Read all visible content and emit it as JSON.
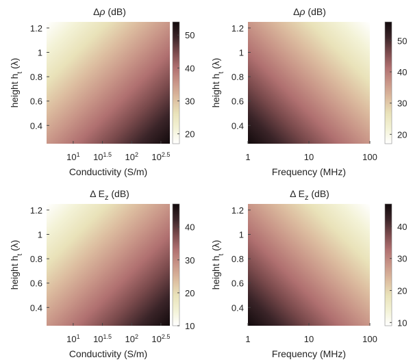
{
  "chart_data": [
    {
      "type": "heatmap",
      "title_prefix": "Δ",
      "title_symbol": "ρ",
      "title_unit": " (dB)",
      "xlabel": "Conductivity (S/m)",
      "ylabel_main": "height h",
      "ylabel_sub": "t",
      "ylabel_unit": " (λ)",
      "x_scale": "log",
      "xlim": [
        3.5,
        450
      ],
      "ylim": [
        0.25,
        1.25
      ],
      "x_ticks": [
        {
          "base": "10",
          "exp": "1"
        },
        {
          "base": "10",
          "exp": "1.5"
        },
        {
          "base": "10",
          "exp": "2"
        },
        {
          "base": "10",
          "exp": "2.5"
        }
      ],
      "x_tick_values": [
        10,
        31.6,
        100,
        316
      ],
      "y_ticks": [
        "0.4",
        "0.6",
        "0.8",
        "1",
        "1.2"
      ],
      "y_tick_values": [
        0.4,
        0.6,
        0.8,
        1.0,
        1.2
      ],
      "colorbar": {
        "min": 17,
        "max": 54,
        "ticks": [
          "20",
          "30",
          "40",
          "50"
        ],
        "tick_values": [
          20,
          30,
          40,
          50
        ]
      },
      "value_range": [
        17,
        54
      ],
      "gradient_direction": "increases toward high x, low y"
    },
    {
      "type": "heatmap",
      "title_prefix": "Δ",
      "title_symbol": "ρ",
      "title_unit": " (dB)",
      "xlabel": "Frequency (MHz)",
      "ylabel_main": "height h",
      "ylabel_sub": "t",
      "ylabel_unit": " (λ)",
      "x_scale": "log",
      "xlim": [
        1,
        100
      ],
      "ylim": [
        0.25,
        1.25
      ],
      "x_ticks": [
        {
          "base": "1",
          "exp": ""
        },
        {
          "base": "10",
          "exp": ""
        },
        {
          "base": "100",
          "exp": ""
        }
      ],
      "x_tick_values": [
        1,
        10,
        100
      ],
      "y_ticks": [
        "0.4",
        "0.6",
        "0.8",
        "1",
        "1.2"
      ],
      "y_tick_values": [
        0.4,
        0.6,
        0.8,
        1.0,
        1.2
      ],
      "colorbar": {
        "min": 17,
        "max": 56,
        "ticks": [
          "20",
          "30",
          "40",
          "50"
        ],
        "tick_values": [
          20,
          30,
          40,
          50
        ]
      },
      "value_range": [
        17,
        56
      ],
      "gradient_direction": "increases toward low x, low y"
    },
    {
      "type": "heatmap",
      "title_prefix": "Δ E",
      "title_symbol": "z",
      "title_unit": " (dB)",
      "xlabel": "Conductivity (S/m)",
      "ylabel_main": "height h",
      "ylabel_sub": "t",
      "ylabel_unit": " (λ)",
      "x_scale": "log",
      "xlim": [
        3.5,
        450
      ],
      "ylim": [
        0.25,
        1.25
      ],
      "x_ticks": [
        {
          "base": "10",
          "exp": "1"
        },
        {
          "base": "10",
          "exp": "1.5"
        },
        {
          "base": "10",
          "exp": "2"
        },
        {
          "base": "10",
          "exp": "2.5"
        }
      ],
      "x_tick_values": [
        10,
        31.6,
        100,
        316
      ],
      "y_ticks": [
        "0.4",
        "0.6",
        "0.8",
        "1",
        "1.2"
      ],
      "y_tick_values": [
        0.4,
        0.6,
        0.8,
        1.0,
        1.2
      ],
      "colorbar": {
        "min": 10,
        "max": 47,
        "ticks": [
          "10",
          "20",
          "30",
          "40"
        ],
        "tick_values": [
          10,
          20,
          30,
          40
        ]
      },
      "value_range": [
        10,
        47
      ],
      "gradient_direction": "increases toward high x, low y"
    },
    {
      "type": "heatmap",
      "title_prefix": "Δ E",
      "title_symbol": "z",
      "title_unit": " (dB)",
      "xlabel": "Frequency (MHz)",
      "ylabel_main": "height h",
      "ylabel_sub": "t",
      "ylabel_unit": " (λ)",
      "x_scale": "log",
      "xlim": [
        1,
        100
      ],
      "ylim": [
        0.25,
        1.25
      ],
      "x_ticks": [
        {
          "base": "1",
          "exp": ""
        },
        {
          "base": "10",
          "exp": ""
        },
        {
          "base": "100",
          "exp": ""
        }
      ],
      "x_tick_values": [
        1,
        10,
        100
      ],
      "y_ticks": [
        "0.4",
        "0.6",
        "0.8",
        "1",
        "1.2"
      ],
      "y_tick_values": [
        0.4,
        0.6,
        0.8,
        1.0,
        1.2
      ],
      "colorbar": {
        "min": 9,
        "max": 47,
        "ticks": [
          "10",
          "20",
          "30",
          "40"
        ],
        "tick_values": [
          10,
          20,
          30,
          40
        ]
      },
      "value_range": [
        9,
        47
      ],
      "gradient_direction": "increases toward low x, low y"
    }
  ],
  "colors": {
    "colormap": [
      "#ffffff",
      "#f3f2d6",
      "#e9e2b9",
      "#dcbc9f",
      "#c99688",
      "#b07070",
      "#7a4a4c",
      "#3a2428",
      "#120a0c"
    ]
  }
}
